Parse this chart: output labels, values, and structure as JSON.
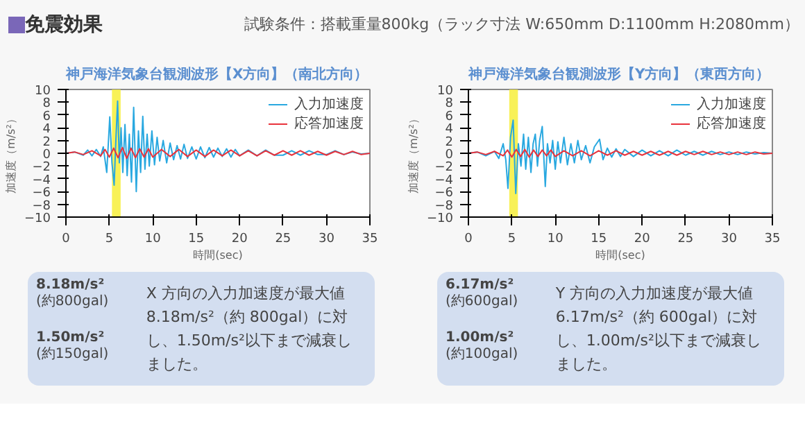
{
  "chart_data": [
    {
      "type": "line",
      "title": "神戸海洋気象台観測波形【X方向】（南北方向）",
      "xlabel": "時間(sec)",
      "ylabel": "加速度（m/s²）",
      "annotations": [
        "免震効果",
        "試験条件：搭載重量800kg（ラック寸法  W:650mm  D:1100mm  H:2080mm）",
        "8.18m/s²",
        "(約800gal)",
        "1.50m/s²",
        "(約150gal)",
        "X 方向の入力加速度が最大値 8.18m/s²（約 800gal）に対し、1.50m/s²以下まで減衰しました。"
      ],
      "xlim": [
        0,
        35
      ],
      "ylim": [
        -10,
        10
      ],
      "xticks": [
        0,
        5,
        10,
        15,
        20,
        25,
        30,
        35
      ],
      "yticks": [
        -10,
        -8,
        -6,
        -4,
        -2,
        0,
        2,
        4,
        6,
        8,
        10
      ],
      "legend": "top right",
      "bands": [
        {
          "axis": "x",
          "from": 5.3,
          "to": 6.3,
          "color": "#f7ee3a"
        }
      ],
      "series": [
        {
          "name": "入力加速度",
          "color": "#29a8e0",
          "x": [
            0,
            1,
            2,
            2.5,
            3,
            3.5,
            4,
            4.3,
            4.7,
            5.05,
            5.3,
            5.55,
            5.75,
            5.95,
            6.15,
            6.35,
            6.55,
            6.8,
            7.05,
            7.3,
            7.55,
            7.8,
            8.1,
            8.35,
            8.6,
            8.85,
            9.1,
            9.35,
            9.6,
            9.9,
            10.2,
            10.5,
            10.8,
            11.2,
            11.6,
            12,
            12.4,
            12.8,
            13.2,
            13.6,
            14,
            14.5,
            15,
            15.5,
            16,
            16.5,
            17,
            17.5,
            18,
            18.5,
            19,
            19.5,
            20,
            21,
            22,
            23,
            24,
            25,
            26,
            27,
            28,
            29,
            30,
            31,
            32,
            33,
            34,
            35
          ],
          "values": [
            0,
            0.2,
            -0.3,
            0.5,
            -0.4,
            0.6,
            -0.5,
            1.0,
            -3,
            5.7,
            -1.5,
            -5,
            2,
            8.18,
            -1.5,
            4,
            -3,
            4.5,
            -3.5,
            3,
            -4.5,
            7.2,
            -6,
            3.5,
            -3,
            5.8,
            -2.5,
            3,
            -2,
            3.5,
            -1.8,
            2.5,
            -1.2,
            2,
            -1.5,
            1.6,
            -1.0,
            1.2,
            -0.9,
            1.4,
            -0.8,
            1.0,
            -0.9,
            1.0,
            -0.7,
            0.9,
            -0.6,
            0.8,
            -0.5,
            0.7,
            -0.6,
            0.6,
            -0.4,
            0.5,
            -0.4,
            0.5,
            -0.3,
            -0.3,
            0.4,
            -0.3,
            0.4,
            -0.2,
            -0.2,
            0.4,
            -0.2,
            0.2,
            -0.1,
            0
          ]
        },
        {
          "name": "応答加速度",
          "color": "#e8333c",
          "x": [
            0,
            1,
            2,
            3,
            4,
            4.5,
            5,
            5.5,
            6,
            6.5,
            7,
            7.5,
            8,
            8.5,
            9,
            9.5,
            10,
            11,
            12,
            13,
            14,
            15,
            16,
            17,
            18,
            19,
            20,
            21,
            22,
            23,
            24,
            25,
            26,
            27,
            28,
            29,
            30,
            31,
            32,
            33,
            34,
            35
          ],
          "values": [
            0,
            0.2,
            -0.2,
            0.4,
            -0.4,
            0.6,
            -0.6,
            0.8,
            -0.7,
            0.9,
            -0.8,
            0.8,
            -0.7,
            0.7,
            -0.6,
            0.7,
            -0.6,
            0.6,
            -0.5,
            0.6,
            -0.5,
            0.5,
            -0.5,
            0.5,
            -0.4,
            0.5,
            -0.4,
            0.4,
            -0.4,
            0.4,
            -0.3,
            0.4,
            -0.3,
            0.4,
            -0.3,
            0.3,
            -0.3,
            0.3,
            -0.2,
            0.3,
            -0.2,
            0
          ]
        }
      ]
    },
    {
      "type": "line",
      "title": "神戸海洋気象台観測波形【Y方向】（東西方向）",
      "xlabel": "時間(sec)",
      "ylabel": "加速度（m/s²）",
      "annotations": [
        "6.17m/s²",
        "(約600gal)",
        "1.00m/s²",
        "(約100gal)",
        "Y 方向の入力加速度が最大値 6.17m/s²（約 600gal）に対し、1.00m/s²以下まで減衰しました。"
      ],
      "xlim": [
        0,
        35
      ],
      "ylim": [
        -10,
        10
      ],
      "xticks": [
        0,
        5,
        10,
        15,
        20,
        25,
        30,
        35
      ],
      "yticks": [
        -10,
        -8,
        -6,
        -4,
        -2,
        0,
        2,
        4,
        6,
        8,
        10
      ],
      "legend": "top right",
      "bands": [
        {
          "axis": "x",
          "from": 4.7,
          "to": 5.7,
          "color": "#f7ee3a"
        }
      ],
      "series": [
        {
          "name": "入力加速度",
          "color": "#29a8e0",
          "x": [
            0,
            1,
            2,
            3,
            3.5,
            4,
            4.3,
            4.55,
            4.85,
            5.15,
            5.45,
            5.75,
            6.05,
            6.35,
            6.6,
            6.9,
            7.2,
            7.45,
            7.7,
            7.95,
            8.2,
            8.5,
            8.85,
            9.1,
            9.4,
            9.7,
            10,
            10.3,
            10.6,
            11,
            11.4,
            11.8,
            12.2,
            12.6,
            13,
            13.5,
            14,
            14.5,
            15.1,
            15.5,
            16,
            16.5,
            17,
            17.5,
            18,
            19,
            20,
            21,
            22,
            23,
            24,
            25,
            26,
            27,
            28,
            29,
            30,
            31,
            32,
            33,
            34,
            35
          ],
          "values": [
            0,
            0.2,
            -0.4,
            0.3,
            -0.8,
            1.5,
            -1,
            -5.5,
            2.5,
            5.2,
            -6.3,
            1.5,
            -2,
            3,
            -2.5,
            2.5,
            -3,
            1.5,
            3,
            -2,
            2,
            4.2,
            -5.2,
            1.5,
            -1.5,
            2,
            -2.5,
            1.8,
            -1.5,
            2.5,
            -1.8,
            1.5,
            -1.5,
            2,
            -1,
            1.2,
            -1.5,
            1,
            2.2,
            -1,
            0.8,
            -0.6,
            0.7,
            -0.5,
            0.6,
            -0.5,
            0.5,
            -0.4,
            0.4,
            -0.4,
            0.5,
            -0.3,
            0.3,
            -0.3,
            0.3,
            -0.2,
            0.2,
            -0.2,
            0.2,
            -0.1,
            0.1,
            0
          ]
        },
        {
          "name": "応答加速度",
          "color": "#e8333c",
          "x": [
            0,
            1,
            2,
            3,
            4,
            4.5,
            5,
            5.5,
            6,
            6.5,
            7,
            7.5,
            8,
            8.5,
            9,
            9.5,
            10,
            11,
            12,
            13,
            14,
            15,
            16,
            17,
            18,
            19,
            20,
            21,
            22,
            23,
            24,
            25,
            26,
            27,
            28,
            29,
            30,
            31,
            32,
            33,
            34,
            35
          ],
          "values": [
            0,
            0.2,
            -0.2,
            0.3,
            -0.4,
            0.5,
            -0.6,
            0.6,
            -0.5,
            0.6,
            -0.6,
            0.5,
            -0.5,
            0.5,
            -0.4,
            0.5,
            -0.5,
            0.4,
            -0.4,
            0.4,
            -0.4,
            0.4,
            -0.3,
            0.4,
            -0.3,
            0.3,
            -0.3,
            0.3,
            -0.3,
            0.3,
            -0.3,
            0.3,
            -0.2,
            0.3,
            -0.2,
            0.2,
            -0.2,
            0.2,
            -0.2,
            0.2,
            -0.1,
            0
          ]
        }
      ]
    }
  ]
}
